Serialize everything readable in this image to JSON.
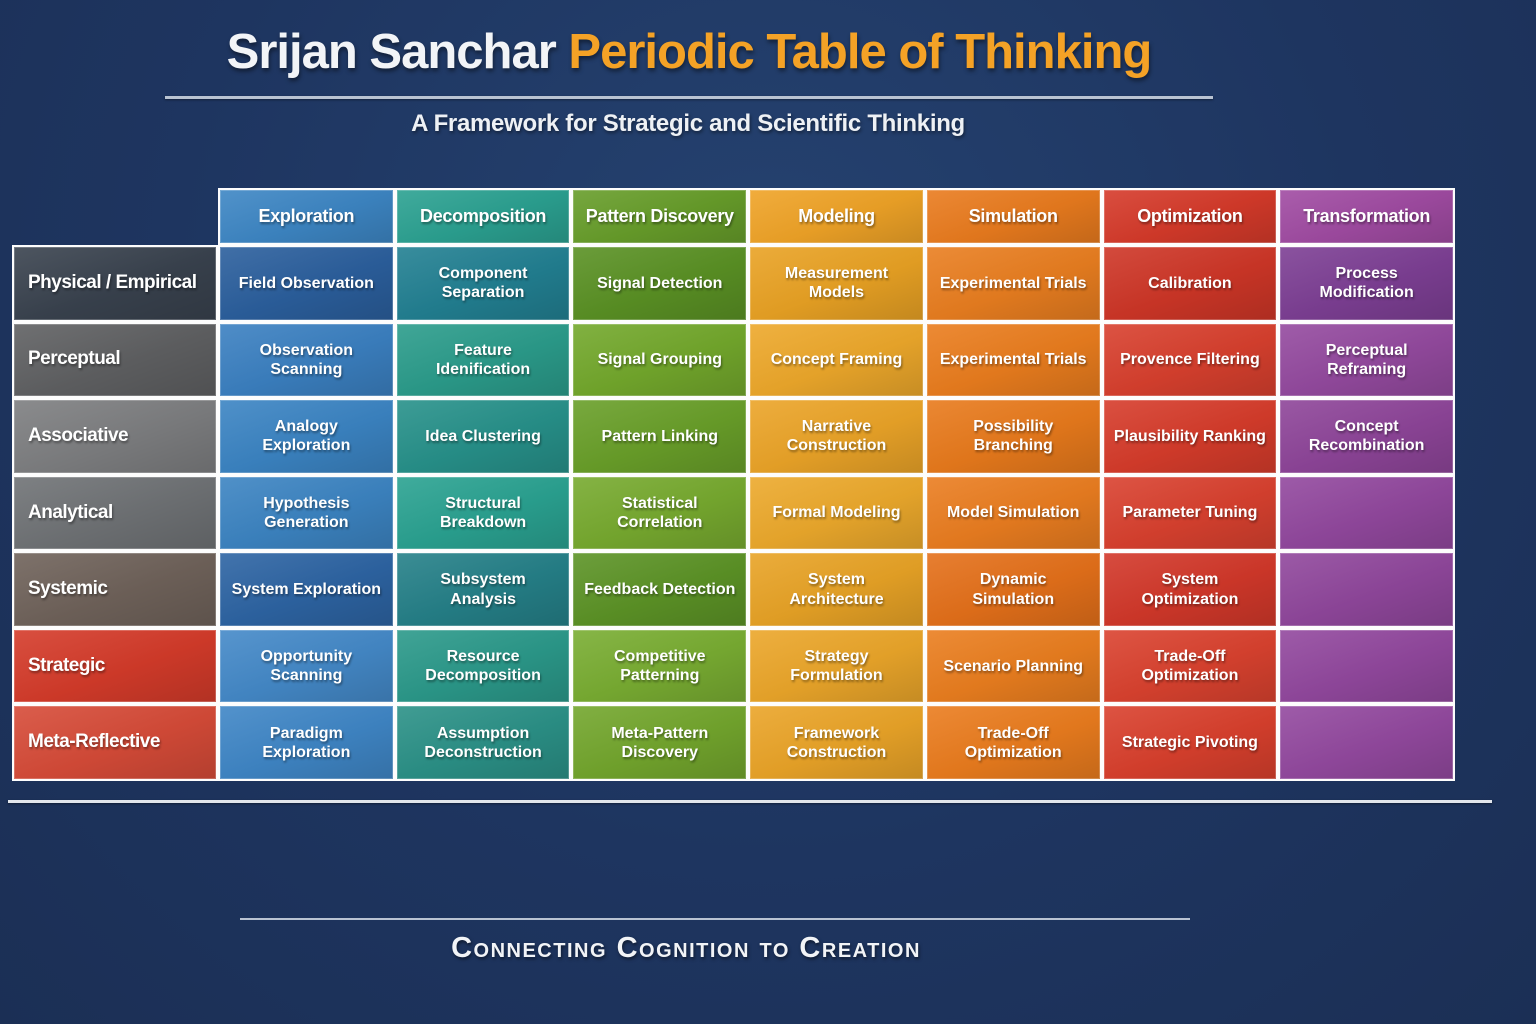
{
  "page": {
    "title_prefix": "Srijan Sanchar ",
    "title_accent": "Periodic Table of Thinking",
    "subtitle": "A Framework for Strategic and Scientific Thinking",
    "footer": "Connecting Cognition to Creation",
    "colors": {
      "background": "#1e3560",
      "title_white": "#f2f4f7",
      "title_orange": "#f4a226",
      "divider": "#b9c3d2"
    }
  },
  "table": {
    "column_headers": [
      {
        "label": "Exploration",
        "color": "#3d86c4"
      },
      {
        "label": "Decomposition",
        "color": "#2ba191"
      },
      {
        "label": "Pattern Discovery",
        "color": "#679d2a"
      },
      {
        "label": "Modeling",
        "color": "#efa327"
      },
      {
        "label": "Simulation",
        "color": "#e97b1e"
      },
      {
        "label": "Optimization",
        "color": "#d53a2a"
      },
      {
        "label": "Transformation",
        "color": "#a04ba2"
      }
    ],
    "rows": [
      {
        "header": {
          "label": "Physical / Empirical",
          "color": "#39424e"
        },
        "cells": [
          {
            "label": "Field Observation",
            "color": "#2b5f9d"
          },
          {
            "label": "Component Separation",
            "color": "#228092"
          },
          {
            "label": "Signal Detection",
            "color": "#5a9124"
          },
          {
            "label": "Measurement Models",
            "color": "#e9a224"
          },
          {
            "label": "Experimental Trials",
            "color": "#e97e20"
          },
          {
            "label": "Calibration",
            "color": "#ce3627"
          },
          {
            "label": "Process Modification",
            "color": "#7d3f94"
          }
        ]
      },
      {
        "header": {
          "label": "Perceptual",
          "color": "#5f6062"
        },
        "cells": [
          {
            "label": "Observation Scanning",
            "color": "#3b80c1"
          },
          {
            "label": "Feature Idenification",
            "color": "#2b9c8b"
          },
          {
            "label": "Signal Grouping",
            "color": "#73a82c"
          },
          {
            "label": "Concept Framing",
            "color": "#eda82b"
          },
          {
            "label": "Experimental Trials",
            "color": "#ea7d1e"
          },
          {
            "label": "Provence Filtering",
            "color": "#d8402e"
          },
          {
            "label": "Perceptual Reframing",
            "color": "#944a9f"
          }
        ]
      },
      {
        "header": {
          "label": "Associative",
          "color": "#7d7e80"
        },
        "cells": [
          {
            "label": "Analogy Exploration",
            "color": "#3b84c3"
          },
          {
            "label": "Idea Clustering",
            "color": "#27918a"
          },
          {
            "label": "Pattern Linking",
            "color": "#699f29"
          },
          {
            "label": "Narrative Construction",
            "color": "#eba428"
          },
          {
            "label": "Possibility Branching",
            "color": "#e87a1c"
          },
          {
            "label": "Plausibility Ranking",
            "color": "#d63c2b"
          },
          {
            "label": "Concept Recombination",
            "color": "#8e4599"
          }
        ]
      },
      {
        "header": {
          "label": "Analytical",
          "color": "#6f7275"
        },
        "cells": [
          {
            "label": "Hypothesis Generation",
            "color": "#3c84c2"
          },
          {
            "label": "Structural Breakdown",
            "color": "#2aa291"
          },
          {
            "label": "Statistical Correlation",
            "color": "#77aa2f"
          },
          {
            "label": "Formal Modeling",
            "color": "#eca92c"
          },
          {
            "label": "Model Simulation",
            "color": "#ea7d20"
          },
          {
            "label": "Parameter Tuning",
            "color": "#d9412f"
          },
          {
            "label": "",
            "color": "#92489e"
          }
        ]
      },
      {
        "header": {
          "label": "Systemic",
          "color": "#6f625a"
        },
        "cells": [
          {
            "label": "System Exploration",
            "color": "#2d64a3"
          },
          {
            "label": "Subsystem Analysis",
            "color": "#258088"
          },
          {
            "label": "Feedback Detection",
            "color": "#5c9326"
          },
          {
            "label": "System Architecture",
            "color": "#e8a326"
          },
          {
            "label": "Dynamic Simulation",
            "color": "#e4701a"
          },
          {
            "label": "System Optimization",
            "color": "#d2382a"
          },
          {
            "label": "",
            "color": "#90479c"
          }
        ]
      },
      {
        "header": {
          "label": "Strategic",
          "color": "#d43b2a"
        },
        "cells": [
          {
            "label": "Opportunity Scanning",
            "color": "#4489c8"
          },
          {
            "label": "Resource Decomposition",
            "color": "#2b998a"
          },
          {
            "label": "Competitive Patterning",
            "color": "#79ad32"
          },
          {
            "label": "Strategy Formulation",
            "color": "#eba62a"
          },
          {
            "label": "Scenario Planning",
            "color": "#ea7e1f"
          },
          {
            "label": "Trade-Off Optimization",
            "color": "#da422f"
          },
          {
            "label": "",
            "color": "#92489e"
          }
        ]
      },
      {
        "header": {
          "label": "Meta-Reflective",
          "color": "#d64b38"
        },
        "cells": [
          {
            "label": "Paradigm Exploration",
            "color": "#3f86c6"
          },
          {
            "label": "Assumption Deconstruction",
            "color": "#2b9187"
          },
          {
            "label": "Meta-Pattern Discovery",
            "color": "#73a62d"
          },
          {
            "label": "Framework Construction",
            "color": "#eaa428"
          },
          {
            "label": "Trade-Off Optimization",
            "color": "#ea7c1e"
          },
          {
            "label": "Strategic Pivoting",
            "color": "#d9402d"
          },
          {
            "label": "",
            "color": "#93499f"
          }
        ]
      }
    ]
  }
}
